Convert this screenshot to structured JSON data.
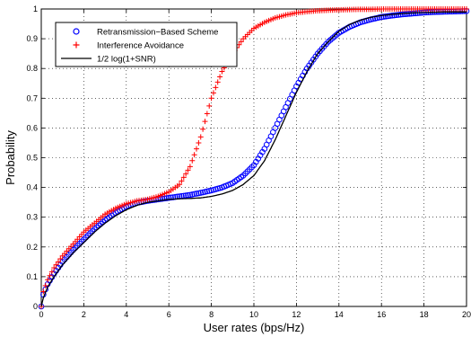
{
  "chart_data": {
    "type": "line",
    "xlabel": "User rates (bps/Hz)",
    "ylabel": "Probability",
    "xlim": [
      0,
      20
    ],
    "ylim": [
      0,
      1
    ],
    "xticks": [
      "0",
      "2",
      "4",
      "6",
      "8",
      "10",
      "12",
      "14",
      "16",
      "18",
      "20"
    ],
    "yticks": [
      "0",
      "0.1",
      "0.2",
      "0.3",
      "0.4",
      "0.5",
      "0.6",
      "0.7",
      "0.8",
      "0.9",
      "1"
    ],
    "grid": true,
    "legend_position": "top-left",
    "series": [
      {
        "name": "Retransmission−Based Scheme",
        "marker": "circle",
        "color": "#0000ff",
        "x": [
          0,
          0.1,
          0.3,
          0.6,
          1,
          1.5,
          2,
          2.5,
          3,
          3.5,
          4,
          4.5,
          5,
          5.5,
          6,
          6.5,
          7,
          7.5,
          8,
          8.5,
          9,
          9.5,
          10,
          10.5,
          11,
          11.5,
          12,
          12.5,
          13,
          13.5,
          14,
          14.5,
          15,
          15.5,
          16,
          16.5,
          17,
          17.5,
          18,
          18.5,
          19,
          19.5,
          20
        ],
        "y": [
          0,
          0.04,
          0.075,
          0.11,
          0.15,
          0.19,
          0.225,
          0.26,
          0.29,
          0.315,
          0.335,
          0.348,
          0.355,
          0.36,
          0.365,
          0.37,
          0.375,
          0.382,
          0.39,
          0.4,
          0.415,
          0.44,
          0.475,
          0.53,
          0.6,
          0.67,
          0.74,
          0.8,
          0.85,
          0.89,
          0.92,
          0.94,
          0.955,
          0.965,
          0.973,
          0.978,
          0.982,
          0.985,
          0.988,
          0.99,
          0.991,
          0.992,
          0.993
        ]
      },
      {
        "name": "Interference Avoidance",
        "marker": "plus",
        "color": "#ff0000",
        "x": [
          0,
          0.1,
          0.3,
          0.6,
          1,
          1.5,
          2,
          2.5,
          3,
          3.5,
          4,
          4.5,
          5,
          5.5,
          6,
          6.5,
          7,
          7.5,
          8,
          8.5,
          9,
          9.5,
          10,
          10.5,
          11,
          11.5,
          12,
          12.5,
          13,
          13.5,
          14,
          14.5,
          15,
          15.5,
          16,
          16.5,
          17,
          17.5,
          18,
          18.5,
          19,
          19.5,
          20
        ],
        "y": [
          0,
          0.05,
          0.09,
          0.13,
          0.17,
          0.21,
          0.25,
          0.28,
          0.31,
          0.33,
          0.345,
          0.355,
          0.36,
          0.37,
          0.385,
          0.41,
          0.47,
          0.57,
          0.7,
          0.79,
          0.85,
          0.9,
          0.935,
          0.955,
          0.97,
          0.98,
          0.987,
          0.991,
          0.994,
          0.996,
          0.997,
          0.998,
          0.999,
          0.999,
          1,
          1,
          1,
          1,
          1,
          1,
          1,
          1,
          1
        ]
      },
      {
        "name": "1/2 log(1+SNR)",
        "marker": "none",
        "color": "#000000",
        "x": [
          0,
          0.1,
          0.3,
          0.6,
          1,
          1.5,
          2,
          2.5,
          3,
          3.5,
          4,
          4.5,
          5,
          5.5,
          6,
          6.5,
          7,
          7.5,
          8,
          8.5,
          9,
          9.5,
          10,
          10.5,
          11,
          11.5,
          12,
          12.5,
          13,
          13.5,
          14,
          14.5,
          15,
          15.5,
          16,
          16.5,
          17,
          17.5,
          18,
          18.5,
          19,
          19.5,
          20
        ],
        "y": [
          0,
          0.03,
          0.065,
          0.1,
          0.14,
          0.18,
          0.215,
          0.25,
          0.28,
          0.305,
          0.325,
          0.34,
          0.35,
          0.355,
          0.36,
          0.362,
          0.363,
          0.365,
          0.37,
          0.378,
          0.39,
          0.41,
          0.44,
          0.49,
          0.56,
          0.64,
          0.72,
          0.79,
          0.85,
          0.89,
          0.925,
          0.948,
          0.962,
          0.972,
          0.978,
          0.982,
          0.985,
          0.987,
          0.988,
          0.989,
          0.99,
          0.99,
          0.99
        ]
      }
    ]
  }
}
